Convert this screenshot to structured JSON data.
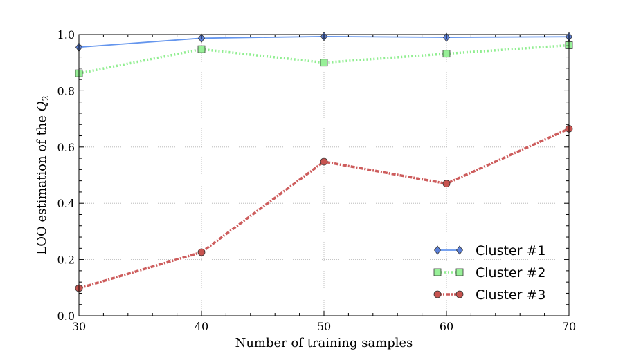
{
  "chart_data": {
    "type": "line",
    "x": [
      30,
      40,
      50,
      60,
      70
    ],
    "xlim": [
      30,
      70
    ],
    "ylim": [
      0.0,
      1.0
    ],
    "xticks": [
      30,
      40,
      50,
      60,
      70
    ],
    "xtick_labels": [
      "30",
      "40",
      "50",
      "60",
      "70"
    ],
    "yticks": [
      0.0,
      0.2,
      0.4,
      0.6,
      0.8,
      1.0
    ],
    "ytick_labels": [
      "0.0",
      "0.2",
      "0.4",
      "0.6",
      "0.8",
      "1.0"
    ],
    "xlabel": "Number of training samples",
    "ylabel_text": "LOO estimation of the ",
    "ylabel_symbol": "Q",
    "ylabel_subscript": "2",
    "grid": true,
    "legend_position": "lower-right",
    "series": [
      {
        "name": "Cluster #1",
        "values": [
          0.955,
          0.987,
          0.993,
          0.99,
          0.992
        ],
        "color": "#6495ed",
        "marker": "diamond",
        "marker_fill": "#5b7fd6",
        "line_style": "solid"
      },
      {
        "name": "Cluster #2",
        "values": [
          0.862,
          0.948,
          0.9,
          0.932,
          0.962
        ],
        "color": "#90ee90",
        "marker": "square",
        "marker_fill": "#98f098",
        "line_style": "dotted"
      },
      {
        "name": "Cluster #3",
        "values": [
          0.098,
          0.226,
          0.548,
          0.47,
          0.665
        ],
        "color": "#cd5c5c",
        "marker": "circle",
        "marker_fill": "#c85450",
        "line_style": "dashdot"
      }
    ]
  }
}
